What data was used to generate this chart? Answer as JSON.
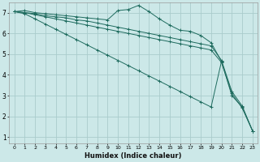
{
  "xlabel": "Humidex (Indice chaleur)",
  "ylabel": "",
  "bg_color": "#cce8e8",
  "grid_color": "#aacccc",
  "line_color": "#1e6b5e",
  "xlim": [
    -0.5,
    23.5
  ],
  "ylim": [
    0.7,
    7.5
  ],
  "xticks": [
    0,
    1,
    2,
    3,
    4,
    5,
    6,
    7,
    8,
    9,
    10,
    11,
    12,
    13,
    14,
    15,
    16,
    17,
    18,
    19,
    20,
    21,
    22,
    23
  ],
  "yticks": [
    1,
    2,
    3,
    4,
    5,
    6,
    7
  ],
  "lines": [
    {
      "x": [
        0,
        1,
        2,
        3,
        4,
        5,
        6,
        7,
        8,
        9,
        10,
        11,
        12,
        13,
        14,
        15,
        16,
        17,
        18,
        19,
        20,
        21,
        22,
        23
      ],
      "y": [
        7.05,
        7.1,
        7.0,
        6.95,
        6.9,
        6.85,
        6.8,
        6.75,
        6.7,
        6.65,
        7.1,
        7.15,
        7.35,
        7.05,
        6.7,
        6.4,
        6.15,
        6.1,
        5.9,
        5.55,
        4.65,
        3.0,
        2.45,
        1.3
      ]
    },
    {
      "x": [
        0,
        1,
        2,
        3,
        4,
        5,
        6,
        7,
        8,
        9,
        10,
        11,
        12,
        13,
        14,
        15,
        16,
        17,
        18,
        19,
        20,
        21,
        22,
        23
      ],
      "y": [
        7.05,
        7.0,
        6.95,
        6.85,
        6.8,
        6.75,
        6.65,
        6.6,
        6.5,
        6.4,
        6.3,
        6.2,
        6.1,
        6.0,
        5.9,
        5.8,
        5.7,
        5.6,
        5.5,
        5.4,
        4.7,
        3.2,
        2.5,
        1.3
      ]
    },
    {
      "x": [
        0,
        1,
        2,
        3,
        4,
        5,
        6,
        7,
        8,
        9,
        10,
        11,
        12,
        13,
        14,
        15,
        16,
        17,
        18,
        19,
        20,
        21,
        22,
        23
      ],
      "y": [
        7.05,
        7.0,
        6.9,
        6.8,
        6.7,
        6.6,
        6.5,
        6.4,
        6.3,
        6.2,
        6.1,
        6.0,
        5.9,
        5.8,
        5.7,
        5.6,
        5.5,
        5.4,
        5.3,
        5.2,
        4.6,
        3.1,
        2.4,
        1.3
      ]
    },
    {
      "x": [
        0,
        1,
        2,
        3,
        4,
        5,
        6,
        7,
        8,
        9,
        10,
        11,
        12,
        13,
        14,
        15,
        16,
        17,
        18,
        19,
        20
      ],
      "y": [
        7.05,
        6.95,
        6.7,
        6.45,
        6.2,
        5.95,
        5.7,
        5.45,
        5.2,
        4.95,
        4.7,
        4.45,
        4.2,
        3.95,
        3.7,
        3.45,
        3.2,
        2.95,
        2.7,
        2.45,
        4.65
      ]
    }
  ]
}
